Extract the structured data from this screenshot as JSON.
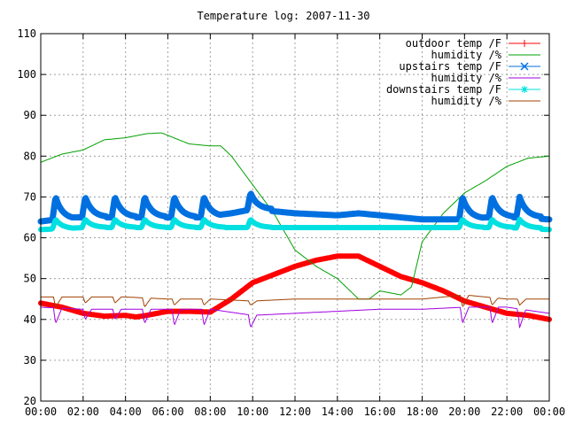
{
  "chart_data": {
    "type": "line",
    "title": "Temperature log: 2007-11-30",
    "xlabel": "",
    "ylabel": "",
    "x_ticks": [
      "00:00",
      "02:00",
      "04:00",
      "06:00",
      "08:00",
      "10:00",
      "12:00",
      "14:00",
      "16:00",
      "18:00",
      "20:00",
      "22:00",
      "00:00"
    ],
    "y_ticks": [
      20,
      30,
      40,
      50,
      60,
      70,
      80,
      90,
      100,
      110
    ],
    "xlim_hours": [
      0,
      24
    ],
    "ylim": [
      20,
      110
    ],
    "grid": true,
    "legend_position": "top-right",
    "series": [
      {
        "name": "outdoor temp /F",
        "color": "#ff0000",
        "marker": "plus",
        "points": [
          [
            0,
            44
          ],
          [
            1,
            43
          ],
          [
            2,
            41.5
          ],
          [
            3,
            40.8
          ],
          [
            4,
            41
          ],
          [
            4.5,
            40.6
          ],
          [
            5,
            41
          ],
          [
            6,
            42
          ],
          [
            7,
            42
          ],
          [
            8,
            41.8
          ],
          [
            9,
            45
          ],
          [
            10,
            49
          ],
          [
            11,
            51
          ],
          [
            12,
            53
          ],
          [
            13,
            54.5
          ],
          [
            14,
            55.5
          ],
          [
            15,
            55.5
          ],
          [
            16,
            53
          ],
          [
            17,
            50.5
          ],
          [
            18,
            49
          ],
          [
            19,
            47
          ],
          [
            20,
            44.5
          ],
          [
            21,
            43
          ],
          [
            22,
            41.5
          ],
          [
            23,
            41
          ],
          [
            24,
            40
          ]
        ]
      },
      {
        "name": "humidity /%",
        "color": "#00a000",
        "marker": "none",
        "points": [
          [
            0,
            78.5
          ],
          [
            1,
            80.5
          ],
          [
            2,
            81.5
          ],
          [
            3,
            84
          ],
          [
            4,
            84.5
          ],
          [
            5,
            85.5
          ],
          [
            5.7,
            85.7
          ],
          [
            7,
            83
          ],
          [
            8,
            82.5
          ],
          [
            8.5,
            82.5
          ],
          [
            9,
            80
          ],
          [
            10,
            73
          ],
          [
            11,
            66
          ],
          [
            12,
            57
          ],
          [
            13,
            53
          ],
          [
            14,
            50
          ],
          [
            15,
            45
          ],
          [
            15.5,
            45
          ],
          [
            16,
            47
          ],
          [
            17,
            46
          ],
          [
            17.5,
            48
          ],
          [
            18,
            59
          ],
          [
            19,
            66
          ],
          [
            20,
            71
          ],
          [
            21,
            74
          ],
          [
            22,
            77.5
          ],
          [
            23,
            79.5
          ],
          [
            24,
            80
          ]
        ]
      },
      {
        "name": "upstairs temp /F",
        "color": "#0070e0",
        "marker": "x",
        "points": [
          [
            0,
            64
          ],
          [
            1.5,
            65
          ],
          [
            3,
            65
          ],
          [
            4.5,
            65
          ],
          [
            6,
            65
          ],
          [
            7.5,
            65
          ],
          [
            9,
            66
          ],
          [
            10,
            67
          ],
          [
            12,
            66
          ],
          [
            14,
            65.5
          ],
          [
            15,
            66
          ],
          [
            16,
            65.5
          ],
          [
            18,
            64.5
          ],
          [
            19.5,
            64.5
          ],
          [
            21,
            65
          ],
          [
            22.5,
            65
          ],
          [
            24,
            64.5
          ]
        ],
        "spikes": [
          [
            0.7,
            70
          ],
          [
            2.1,
            70
          ],
          [
            3.5,
            70
          ],
          [
            4.9,
            70
          ],
          [
            6.3,
            70
          ],
          [
            7.7,
            70
          ],
          [
            9.9,
            71
          ],
          [
            19.9,
            70
          ],
          [
            21.3,
            70
          ],
          [
            22.6,
            70
          ]
        ]
      },
      {
        "name": "humidity /%",
        "color": "#a000e0",
        "marker": "none",
        "points": [
          [
            0,
            43
          ],
          [
            2,
            42.5
          ],
          [
            4,
            42.5
          ],
          [
            6,
            42.5
          ],
          [
            8,
            42.5
          ],
          [
            10,
            41
          ],
          [
            12,
            41.5
          ],
          [
            14,
            42
          ],
          [
            16,
            42.5
          ],
          [
            18,
            42.5
          ],
          [
            20,
            43
          ],
          [
            22,
            43
          ],
          [
            24,
            41.5
          ]
        ],
        "dips": [
          [
            0.7,
            39
          ],
          [
            2.1,
            40
          ],
          [
            3.5,
            40
          ],
          [
            4.9,
            39
          ],
          [
            6.3,
            38.5
          ],
          [
            7.7,
            38.5
          ],
          [
            9.9,
            38
          ],
          [
            19.9,
            39
          ],
          [
            21.3,
            39
          ],
          [
            22.6,
            38
          ]
        ]
      },
      {
        "name": "downstairs temp /F",
        "color": "#00e0e0",
        "marker": "star",
        "points": [
          [
            0,
            62
          ],
          [
            2,
            62.5
          ],
          [
            4,
            62.5
          ],
          [
            6,
            62.5
          ],
          [
            8,
            62.5
          ],
          [
            10,
            62.5
          ],
          [
            12,
            62.5
          ],
          [
            14,
            62.5
          ],
          [
            16,
            62.5
          ],
          [
            18,
            62.5
          ],
          [
            20,
            62.5
          ],
          [
            22,
            62.5
          ],
          [
            24,
            62
          ]
        ],
        "spikes": [
          [
            0.7,
            64.5
          ],
          [
            2.1,
            64.5
          ],
          [
            3.5,
            64.5
          ],
          [
            4.9,
            64.5
          ],
          [
            6.3,
            64.5
          ],
          [
            7.7,
            64.5
          ],
          [
            9.9,
            64.5
          ],
          [
            19.9,
            64.5
          ],
          [
            21.3,
            64.5
          ],
          [
            22.6,
            64.5
          ]
        ]
      },
      {
        "name": "humidity /%",
        "color": "#a04000",
        "marker": "none",
        "points": [
          [
            0,
            45.5
          ],
          [
            2,
            45.5
          ],
          [
            4,
            45.5
          ],
          [
            6,
            45
          ],
          [
            8,
            45
          ],
          [
            10,
            44.5
          ],
          [
            12,
            45
          ],
          [
            14,
            45
          ],
          [
            16,
            45
          ],
          [
            18,
            45
          ],
          [
            20,
            46
          ],
          [
            22,
            45
          ],
          [
            24,
            45
          ]
        ],
        "dips": [
          [
            0.7,
            43
          ],
          [
            2.1,
            44
          ],
          [
            3.5,
            44
          ],
          [
            4.9,
            43
          ],
          [
            6.3,
            43.5
          ],
          [
            7.7,
            43.5
          ],
          [
            9.9,
            43.5
          ],
          [
            19.9,
            43
          ],
          [
            21.3,
            43.5
          ],
          [
            22.6,
            43.5
          ]
        ]
      }
    ]
  }
}
